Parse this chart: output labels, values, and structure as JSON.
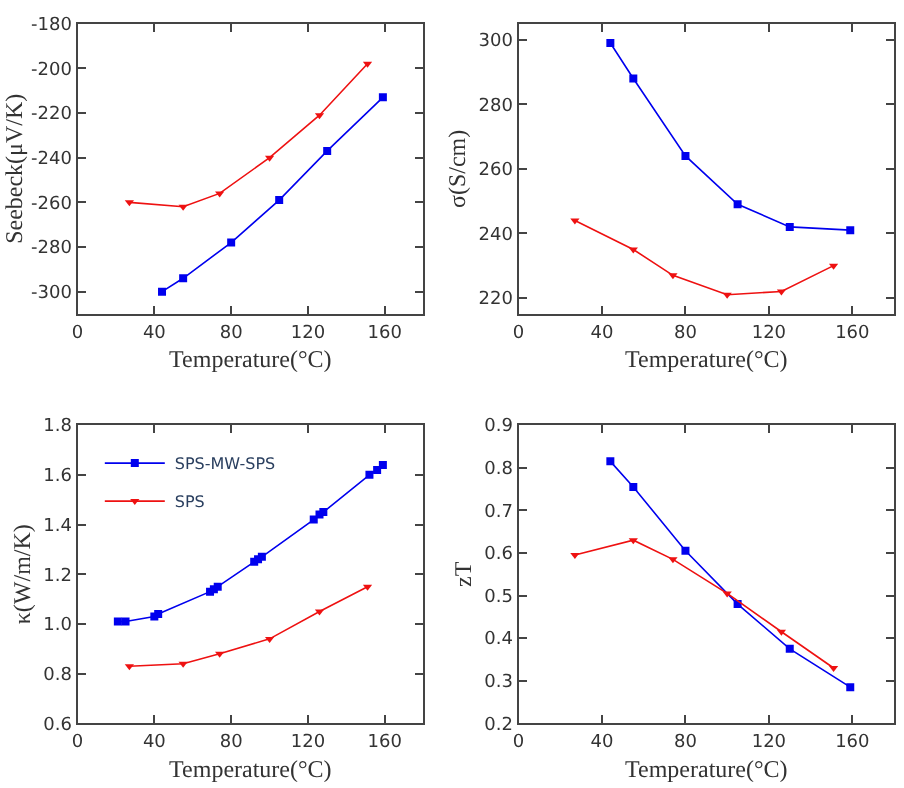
{
  "chart_data": [
    {
      "type": "line",
      "xlabel": "Temperature(°C)",
      "ylabel": "Seebeck(μV/K)",
      "xlim": [
        0,
        180
      ],
      "xticks": [
        0,
        40,
        80,
        120,
        160
      ],
      "ylim": [
        -310,
        -180
      ],
      "yticks": [
        -300,
        -280,
        -260,
        -240,
        -220,
        -200,
        -180
      ],
      "legend": false,
      "series": [
        {
          "color": "#0000ee",
          "marker": "square",
          "x": [
            44,
            55,
            80,
            105,
            130,
            159
          ],
          "values": [
            -300,
            -294,
            -278,
            -259,
            -237,
            -213
          ]
        },
        {
          "color": "#ee1111",
          "marker": "triangle",
          "x": [
            27,
            55,
            74,
            100,
            126,
            151
          ],
          "values": [
            -260,
            -262,
            -256,
            -240,
            -221,
            -198
          ]
        }
      ]
    },
    {
      "type": "line",
      "xlabel": "Temperature(°C)",
      "ylabel": "σ(S/cm)",
      "xlim": [
        0,
        180
      ],
      "xticks": [
        0,
        40,
        80,
        120,
        160
      ],
      "ylim": [
        215,
        305
      ],
      "yticks": [
        220,
        240,
        260,
        280,
        300
      ],
      "legend": false,
      "series": [
        {
          "color": "#0000ee",
          "marker": "square",
          "x": [
            44,
            55,
            80,
            105,
            130,
            159
          ],
          "values": [
            299,
            288,
            264,
            249,
            242,
            241
          ]
        },
        {
          "color": "#ee1111",
          "marker": "triangle",
          "x": [
            27,
            55,
            74,
            100,
            126,
            151
          ],
          "values": [
            244,
            235,
            227,
            221,
            222,
            230
          ]
        }
      ]
    },
    {
      "type": "line",
      "xlabel": "Temperature(°C)",
      "ylabel": "κ(W/m/K)",
      "xlim": [
        0,
        180
      ],
      "xticks": [
        0,
        40,
        80,
        120,
        160
      ],
      "ylim": [
        0.6,
        1.8
      ],
      "yticks": [
        {
          "value": 0.6,
          "label": "0.6"
        },
        {
          "value": 0.8,
          "label": "0.8"
        },
        {
          "value": 1.0,
          "label": "1.0"
        },
        {
          "value": 1.2,
          "label": "1.2"
        },
        {
          "value": 1.4,
          "label": "1.4"
        },
        {
          "value": 1.6,
          "label": "1.6"
        },
        {
          "value": 1.8,
          "label": "1.8"
        }
      ],
      "legend": "top left",
      "series": [
        {
          "name": "SPS-MW-SPS",
          "color": "#0000ee",
          "marker": "square",
          "x": [
            21,
            25,
            40,
            42,
            69,
            71,
            73,
            92,
            94,
            96,
            123,
            126,
            128,
            152,
            156,
            159
          ],
          "values": [
            1.01,
            1.01,
            1.03,
            1.04,
            1.13,
            1.14,
            1.15,
            1.25,
            1.26,
            1.27,
            1.42,
            1.44,
            1.45,
            1.6,
            1.62,
            1.64
          ]
        },
        {
          "name": "SPS",
          "color": "#ee1111",
          "marker": "triangle",
          "x": [
            27,
            55,
            74,
            100,
            126,
            151
          ],
          "values": [
            0.83,
            0.84,
            0.88,
            0.94,
            1.05,
            1.15
          ]
        }
      ]
    },
    {
      "type": "line",
      "xlabel": "Temperature(°C)",
      "ylabel": "zT",
      "xlim": [
        0,
        180
      ],
      "xticks": [
        0,
        40,
        80,
        120,
        160
      ],
      "ylim": [
        0.2,
        0.9
      ],
      "yticks": [
        0.2,
        0.3,
        0.4,
        0.5,
        0.6,
        0.7,
        0.8,
        0.9
      ],
      "legend": false,
      "series": [
        {
          "color": "#0000ee",
          "marker": "square",
          "x": [
            44,
            55,
            80,
            105,
            130,
            159
          ],
          "values": [
            0.815,
            0.755,
            0.605,
            0.48,
            0.375,
            0.285
          ]
        },
        {
          "color": "#ee1111",
          "marker": "triangle",
          "x": [
            27,
            55,
            74,
            100,
            126,
            151
          ],
          "values": [
            0.595,
            0.63,
            0.585,
            0.505,
            0.415,
            0.33
          ]
        }
      ]
    }
  ]
}
